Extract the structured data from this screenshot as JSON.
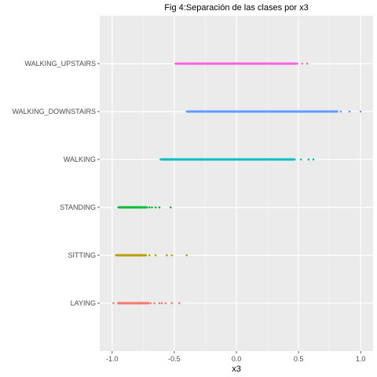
{
  "chart_data": {
    "type": "scatter",
    "title": "Fig 4:Separación de las clases por x3",
    "xlabel": "x3",
    "ylabel": "",
    "xlim": [
      -1.1,
      1.1
    ],
    "x_ticks": [
      -1.0,
      -0.5,
      0.0,
      0.5,
      1.0
    ],
    "x_tick_labels": [
      "-1.0",
      "-0.5",
      "0.0",
      "0.5",
      "1.0"
    ],
    "grid": true,
    "legend": "none",
    "categories": [
      "LAYING",
      "SITTING",
      "STANDING",
      "WALKING",
      "WALKING_DOWNSTAIRS",
      "WALKING_UPSTAIRS"
    ],
    "series": [
      {
        "category": "LAYING",
        "color": "#F8766D",
        "dense_range": [
          -0.96,
          -0.7
        ],
        "x": [
          -0.99,
          -0.95,
          -0.92,
          -0.88,
          -0.84,
          -0.8,
          -0.76,
          -0.72,
          -0.69,
          -0.66,
          -0.62,
          -0.6,
          -0.57,
          -0.52,
          -0.46
        ]
      },
      {
        "category": "SITTING",
        "color": "#B79F00",
        "dense_range": [
          -0.97,
          -0.72
        ],
        "x": [
          -0.97,
          -0.94,
          -0.91,
          -0.88,
          -0.85,
          -0.82,
          -0.78,
          -0.74,
          -0.7,
          -0.65,
          -0.56,
          -0.52,
          -0.4
        ]
      },
      {
        "category": "STANDING",
        "color": "#00BA38",
        "dense_range": [
          -0.95,
          -0.72
        ],
        "x": [
          -0.95,
          -0.92,
          -0.88,
          -0.84,
          -0.8,
          -0.76,
          -0.72,
          -0.7,
          -0.68,
          -0.65,
          -0.62,
          -0.53
        ]
      },
      {
        "category": "WALKING",
        "color": "#00BFC4",
        "dense_range": [
          -0.61,
          0.47
        ],
        "x": [
          -0.61,
          -0.5,
          -0.4,
          -0.3,
          -0.2,
          -0.1,
          0.0,
          0.1,
          0.2,
          0.3,
          0.4,
          0.47,
          0.52,
          0.58,
          0.62
        ]
      },
      {
        "category": "WALKING_DOWNSTAIRS",
        "color": "#619CFF",
        "dense_range": [
          -0.4,
          0.82
        ],
        "x": [
          -0.4,
          -0.3,
          -0.2,
          -0.1,
          0.0,
          0.1,
          0.2,
          0.3,
          0.4,
          0.5,
          0.6,
          0.7,
          0.8,
          0.84,
          0.91,
          1.0
        ]
      },
      {
        "category": "WALKING_UPSTAIRS",
        "color": "#F564E3",
        "dense_range": [
          -0.49,
          0.49
        ],
        "x": [
          -0.49,
          -0.44,
          -0.4,
          -0.3,
          -0.2,
          -0.1,
          0.0,
          0.1,
          0.2,
          0.3,
          0.4,
          0.49,
          0.53,
          0.57
        ]
      }
    ]
  }
}
